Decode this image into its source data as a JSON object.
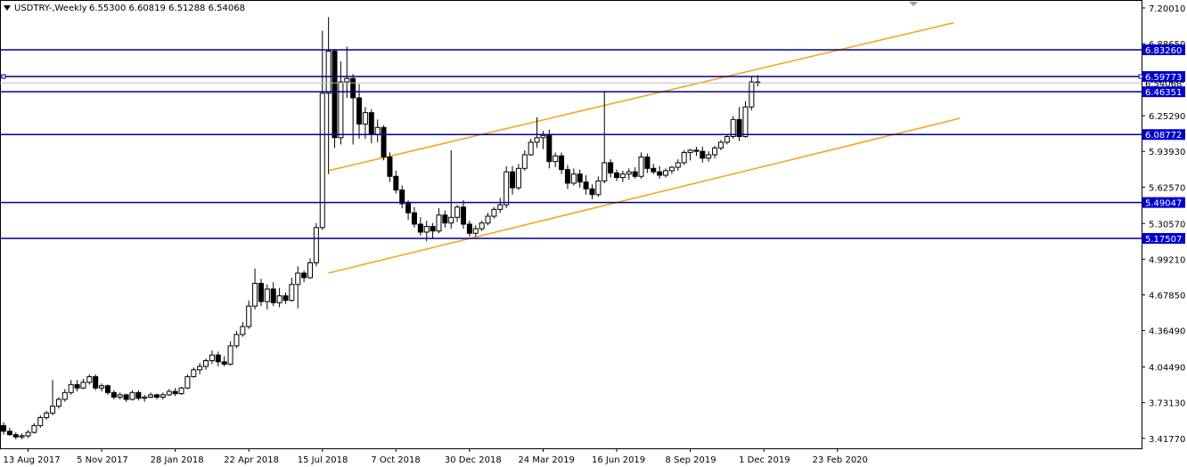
{
  "chart_title": {
    "symbol": "USDTRY-,Weekly",
    "ohlc": "6.55300 6.60819 6.51288 6.54068"
  },
  "colors": {
    "bull_candle": "#ffffff",
    "bear_candle": "#000000",
    "hline": "#00008b",
    "channel": "#f5a623",
    "label_bg": "#0000cd",
    "current_price_line": "#c0c0c0"
  },
  "chart_data": {
    "type": "candlestick",
    "symbol": "USDTRY-",
    "timeframe": "Weekly",
    "ylim": [
      3.33,
      7.27
    ],
    "y_ticks": [
      "7.20010",
      "6.88650",
      "6.57290",
      "6.25290",
      "5.93930",
      "5.62570",
      "5.30570",
      "4.99210",
      "4.67850",
      "4.36490",
      "4.04490",
      "3.73130",
      "3.41770"
    ],
    "x_ticks": [
      "13 Aug 2017",
      "5 Nov 2017",
      "28 Jan 2018",
      "22 Apr 2018",
      "15 Jul 2018",
      "7 Oct 2018",
      "30 Dec 2018",
      "24 Mar 2019",
      "16 Jun 2019",
      "8 Sep 2019",
      "1 Dec 2019",
      "23 Feb 2020"
    ],
    "current_price": "6.54068",
    "horizontal_levels": [
      "6.83260",
      "6.59773",
      "6.46351",
      "6.08772",
      "5.49047",
      "5.17507"
    ],
    "channel": {
      "upper": {
        "from": [
          "2018-07-22",
          5.77
        ],
        "to": [
          "2020-07-05",
          7.07
        ]
      },
      "lower": {
        "from": [
          "2018-07-22",
          4.87
        ],
        "to": [
          "2020-07-12",
          6.23
        ]
      }
    },
    "candles": [
      {
        "o": 3.53,
        "h": 3.56,
        "l": 3.45,
        "c": 3.48
      },
      {
        "o": 3.48,
        "h": 3.51,
        "l": 3.44,
        "c": 3.45
      },
      {
        "o": 3.45,
        "h": 3.47,
        "l": 3.41,
        "c": 3.43
      },
      {
        "o": 3.43,
        "h": 3.46,
        "l": 3.41,
        "c": 3.44
      },
      {
        "o": 3.44,
        "h": 3.49,
        "l": 3.42,
        "c": 3.47
      },
      {
        "o": 3.47,
        "h": 3.55,
        "l": 3.46,
        "c": 3.53
      },
      {
        "o": 3.53,
        "h": 3.62,
        "l": 3.51,
        "c": 3.6
      },
      {
        "o": 3.6,
        "h": 3.66,
        "l": 3.58,
        "c": 3.64
      },
      {
        "o": 3.64,
        "h": 3.93,
        "l": 3.62,
        "c": 3.7
      },
      {
        "o": 3.7,
        "h": 3.78,
        "l": 3.68,
        "c": 3.76
      },
      {
        "o": 3.76,
        "h": 3.85,
        "l": 3.74,
        "c": 3.82
      },
      {
        "o": 3.82,
        "h": 3.93,
        "l": 3.8,
        "c": 3.89
      },
      {
        "o": 3.89,
        "h": 3.93,
        "l": 3.83,
        "c": 3.86
      },
      {
        "o": 3.86,
        "h": 3.94,
        "l": 3.85,
        "c": 3.91
      },
      {
        "o": 3.91,
        "h": 3.98,
        "l": 3.89,
        "c": 3.96
      },
      {
        "o": 3.96,
        "h": 3.98,
        "l": 3.84,
        "c": 3.86
      },
      {
        "o": 3.86,
        "h": 3.9,
        "l": 3.83,
        "c": 3.88
      },
      {
        "o": 3.88,
        "h": 3.89,
        "l": 3.8,
        "c": 3.82
      },
      {
        "o": 3.82,
        "h": 3.84,
        "l": 3.76,
        "c": 3.78
      },
      {
        "o": 3.78,
        "h": 3.82,
        "l": 3.76,
        "c": 3.8
      },
      {
        "o": 3.8,
        "h": 3.81,
        "l": 3.74,
        "c": 3.76
      },
      {
        "o": 3.76,
        "h": 3.84,
        "l": 3.75,
        "c": 3.82
      },
      {
        "o": 3.82,
        "h": 3.84,
        "l": 3.75,
        "c": 3.77
      },
      {
        "o": 3.77,
        "h": 3.8,
        "l": 3.74,
        "c": 3.78
      },
      {
        "o": 3.78,
        "h": 3.82,
        "l": 3.77,
        "c": 3.8
      },
      {
        "o": 3.8,
        "h": 3.81,
        "l": 3.76,
        "c": 3.78
      },
      {
        "o": 3.78,
        "h": 3.82,
        "l": 3.76,
        "c": 3.8
      },
      {
        "o": 3.8,
        "h": 3.85,
        "l": 3.79,
        "c": 3.83
      },
      {
        "o": 3.83,
        "h": 3.86,
        "l": 3.79,
        "c": 3.81
      },
      {
        "o": 3.81,
        "h": 3.87,
        "l": 3.8,
        "c": 3.86
      },
      {
        "o": 3.86,
        "h": 3.98,
        "l": 3.85,
        "c": 3.96
      },
      {
        "o": 3.96,
        "h": 4.04,
        "l": 3.95,
        "c": 4.02
      },
      {
        "o": 4.02,
        "h": 4.08,
        "l": 3.98,
        "c": 4.05
      },
      {
        "o": 4.05,
        "h": 4.12,
        "l": 4.02,
        "c": 4.1
      },
      {
        "o": 4.1,
        "h": 4.19,
        "l": 4.07,
        "c": 4.15
      },
      {
        "o": 4.15,
        "h": 4.18,
        "l": 4.05,
        "c": 4.09
      },
      {
        "o": 4.09,
        "h": 4.14,
        "l": 4.05,
        "c": 4.07
      },
      {
        "o": 4.07,
        "h": 4.27,
        "l": 4.06,
        "c": 4.23
      },
      {
        "o": 4.23,
        "h": 4.36,
        "l": 4.21,
        "c": 4.33
      },
      {
        "o": 4.33,
        "h": 4.44,
        "l": 4.31,
        "c": 4.4
      },
      {
        "o": 4.4,
        "h": 4.63,
        "l": 4.38,
        "c": 4.58
      },
      {
        "o": 4.58,
        "h": 4.91,
        "l": 4.55,
        "c": 4.78
      },
      {
        "o": 4.78,
        "h": 4.82,
        "l": 4.58,
        "c": 4.62
      },
      {
        "o": 4.62,
        "h": 4.77,
        "l": 4.55,
        "c": 4.73
      },
      {
        "o": 4.73,
        "h": 4.79,
        "l": 4.58,
        "c": 4.61
      },
      {
        "o": 4.61,
        "h": 4.74,
        "l": 4.57,
        "c": 4.67
      },
      {
        "o": 4.67,
        "h": 4.7,
        "l": 4.6,
        "c": 4.63
      },
      {
        "o": 4.63,
        "h": 4.83,
        "l": 4.62,
        "c": 4.77
      },
      {
        "o": 4.77,
        "h": 4.93,
        "l": 4.56,
        "c": 4.87
      },
      {
        "o": 4.87,
        "h": 4.89,
        "l": 4.79,
        "c": 4.83
      },
      {
        "o": 4.83,
        "h": 5.0,
        "l": 4.82,
        "c": 4.96
      },
      {
        "o": 4.96,
        "h": 5.31,
        "l": 4.93,
        "c": 5.27
      },
      {
        "o": 5.27,
        "h": 7.0,
        "l": 5.25,
        "c": 6.45
      },
      {
        "o": 6.45,
        "h": 7.12,
        "l": 5.74,
        "c": 6.82
      },
      {
        "o": 6.82,
        "h": 6.84,
        "l": 5.97,
        "c": 6.06
      },
      {
        "o": 6.06,
        "h": 6.73,
        "l": 6.0,
        "c": 6.55
      },
      {
        "o": 6.55,
        "h": 6.86,
        "l": 6.41,
        "c": 6.58
      },
      {
        "o": 6.58,
        "h": 6.62,
        "l": 6.0,
        "c": 6.41
      },
      {
        "o": 6.41,
        "h": 6.53,
        "l": 6.05,
        "c": 6.18
      },
      {
        "o": 6.18,
        "h": 6.33,
        "l": 6.05,
        "c": 6.28
      },
      {
        "o": 6.28,
        "h": 6.31,
        "l": 6.01,
        "c": 6.09
      },
      {
        "o": 6.09,
        "h": 6.22,
        "l": 6.02,
        "c": 6.15
      },
      {
        "o": 6.15,
        "h": 6.17,
        "l": 5.86,
        "c": 5.89
      },
      {
        "o": 5.89,
        "h": 5.93,
        "l": 5.67,
        "c": 5.72
      },
      {
        "o": 5.72,
        "h": 5.77,
        "l": 5.57,
        "c": 5.6
      },
      {
        "o": 5.6,
        "h": 5.64,
        "l": 5.44,
        "c": 5.48
      },
      {
        "o": 5.48,
        "h": 5.51,
        "l": 5.34,
        "c": 5.4
      },
      {
        "o": 5.4,
        "h": 5.45,
        "l": 5.27,
        "c": 5.3
      },
      {
        "o": 5.3,
        "h": 5.36,
        "l": 5.2,
        "c": 5.23
      },
      {
        "o": 5.23,
        "h": 5.33,
        "l": 5.15,
        "c": 5.28
      },
      {
        "o": 5.28,
        "h": 5.31,
        "l": 5.17,
        "c": 5.24
      },
      {
        "o": 5.24,
        "h": 5.44,
        "l": 5.22,
        "c": 5.38
      },
      {
        "o": 5.38,
        "h": 5.42,
        "l": 5.27,
        "c": 5.31
      },
      {
        "o": 5.31,
        "h": 5.95,
        "l": 5.26,
        "c": 5.36
      },
      {
        "o": 5.36,
        "h": 5.47,
        "l": 5.32,
        "c": 5.45
      },
      {
        "o": 5.45,
        "h": 5.51,
        "l": 5.26,
        "c": 5.3
      },
      {
        "o": 5.3,
        "h": 5.33,
        "l": 5.19,
        "c": 5.22
      },
      {
        "o": 5.22,
        "h": 5.29,
        "l": 5.19,
        "c": 5.26
      },
      {
        "o": 5.26,
        "h": 5.33,
        "l": 5.24,
        "c": 5.31
      },
      {
        "o": 5.31,
        "h": 5.4,
        "l": 5.29,
        "c": 5.37
      },
      {
        "o": 5.37,
        "h": 5.45,
        "l": 5.35,
        "c": 5.43
      },
      {
        "o": 5.43,
        "h": 5.53,
        "l": 5.4,
        "c": 5.47
      },
      {
        "o": 5.47,
        "h": 5.81,
        "l": 5.44,
        "c": 5.76
      },
      {
        "o": 5.76,
        "h": 5.81,
        "l": 5.56,
        "c": 5.62
      },
      {
        "o": 5.62,
        "h": 5.83,
        "l": 5.6,
        "c": 5.79
      },
      {
        "o": 5.79,
        "h": 5.95,
        "l": 5.77,
        "c": 5.91
      },
      {
        "o": 5.91,
        "h": 6.05,
        "l": 5.9,
        "c": 6.02
      },
      {
        "o": 6.02,
        "h": 6.24,
        "l": 5.97,
        "c": 6.06
      },
      {
        "o": 6.06,
        "h": 6.12,
        "l": 5.96,
        "c": 6.08
      },
      {
        "o": 6.08,
        "h": 6.13,
        "l": 5.79,
        "c": 5.85
      },
      {
        "o": 5.85,
        "h": 5.93,
        "l": 5.8,
        "c": 5.9
      },
      {
        "o": 5.9,
        "h": 5.93,
        "l": 5.74,
        "c": 5.78
      },
      {
        "o": 5.78,
        "h": 5.82,
        "l": 5.61,
        "c": 5.66
      },
      {
        "o": 5.66,
        "h": 5.79,
        "l": 5.64,
        "c": 5.74
      },
      {
        "o": 5.74,
        "h": 5.78,
        "l": 5.62,
        "c": 5.67
      },
      {
        "o": 5.67,
        "h": 5.73,
        "l": 5.56,
        "c": 5.61
      },
      {
        "o": 5.61,
        "h": 5.65,
        "l": 5.52,
        "c": 5.56
      },
      {
        "o": 5.56,
        "h": 5.72,
        "l": 5.54,
        "c": 5.68
      },
      {
        "o": 5.68,
        "h": 6.47,
        "l": 5.66,
        "c": 5.84
      },
      {
        "o": 5.84,
        "h": 5.87,
        "l": 5.71,
        "c": 5.75
      },
      {
        "o": 5.75,
        "h": 5.78,
        "l": 5.68,
        "c": 5.71
      },
      {
        "o": 5.71,
        "h": 5.77,
        "l": 5.67,
        "c": 5.74
      },
      {
        "o": 5.74,
        "h": 5.79,
        "l": 5.69,
        "c": 5.76
      },
      {
        "o": 5.76,
        "h": 5.8,
        "l": 5.7,
        "c": 5.72
      },
      {
        "o": 5.72,
        "h": 5.93,
        "l": 5.7,
        "c": 5.89
      },
      {
        "o": 5.89,
        "h": 5.92,
        "l": 5.75,
        "c": 5.79
      },
      {
        "o": 5.79,
        "h": 5.83,
        "l": 5.74,
        "c": 5.76
      },
      {
        "o": 5.76,
        "h": 5.81,
        "l": 5.7,
        "c": 5.73
      },
      {
        "o": 5.73,
        "h": 5.79,
        "l": 5.71,
        "c": 5.77
      },
      {
        "o": 5.77,
        "h": 5.81,
        "l": 5.74,
        "c": 5.8
      },
      {
        "o": 5.8,
        "h": 5.87,
        "l": 5.77,
        "c": 5.84
      },
      {
        "o": 5.84,
        "h": 5.95,
        "l": 5.82,
        "c": 5.93
      },
      {
        "o": 5.93,
        "h": 5.96,
        "l": 5.86,
        "c": 5.95
      },
      {
        "o": 5.95,
        "h": 5.98,
        "l": 5.9,
        "c": 5.94
      },
      {
        "o": 5.94,
        "h": 5.98,
        "l": 5.84,
        "c": 5.88
      },
      {
        "o": 5.88,
        "h": 5.94,
        "l": 5.85,
        "c": 5.91
      },
      {
        "o": 5.91,
        "h": 5.99,
        "l": 5.88,
        "c": 5.97
      },
      {
        "o": 5.97,
        "h": 6.04,
        "l": 5.95,
        "c": 6.02
      },
      {
        "o": 6.02,
        "h": 6.09,
        "l": 6.0,
        "c": 6.07
      },
      {
        "o": 6.07,
        "h": 6.25,
        "l": 6.05,
        "c": 6.22
      },
      {
        "o": 6.22,
        "h": 6.33,
        "l": 6.03,
        "c": 6.07
      },
      {
        "o": 6.07,
        "h": 6.38,
        "l": 6.06,
        "c": 6.33
      },
      {
        "o": 6.33,
        "h": 6.6,
        "l": 6.3,
        "c": 6.55
      },
      {
        "o": 6.55,
        "h": 6.61,
        "l": 6.51,
        "c": 6.54
      }
    ]
  }
}
